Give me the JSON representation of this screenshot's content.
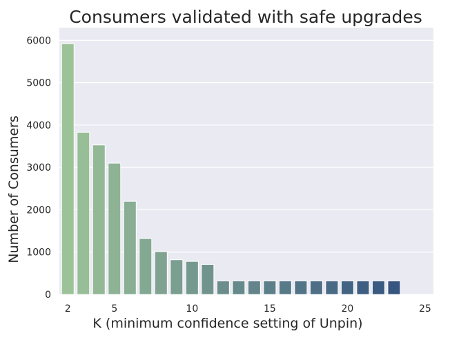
{
  "chart_data": {
    "type": "bar",
    "title": "Consumers validated with safe upgrades",
    "xlabel": "K (minimum confidence setting of Unpin)",
    "ylabel": "Number of Consumers",
    "categories": [
      2,
      3,
      4,
      5,
      6,
      7,
      8,
      9,
      10,
      11,
      12,
      13,
      14,
      15,
      16,
      17,
      18,
      19,
      20,
      21,
      22,
      23,
      24,
      25
    ],
    "values": [
      5920,
      3830,
      3530,
      3100,
      2200,
      1320,
      1010,
      820,
      780,
      710,
      320,
      320,
      320,
      320,
      320,
      320,
      320,
      320,
      320,
      320,
      320,
      320,
      0,
      0
    ],
    "xticks": [
      2,
      5,
      10,
      15,
      20,
      25
    ],
    "yticks": [
      0,
      1000,
      2000,
      3000,
      4000,
      5000,
      6000
    ],
    "ylim": [
      0,
      6300
    ],
    "grid": true,
    "palette_start": "#9cc397",
    "palette_end": "#2c4a7e",
    "background": "#eaeaf2"
  }
}
